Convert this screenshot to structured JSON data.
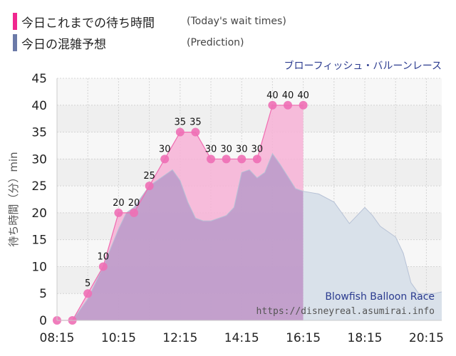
{
  "legend": [
    {
      "label": "今日これまでの待ち時間",
      "sub": "(Today's wait times)",
      "color": "#f0278f"
    },
    {
      "label": "今日の混雑予想",
      "sub": "(Prediction)",
      "color": "#6b7aa8"
    }
  ],
  "attraction_name": "ブローフィッシュ・バルーンレース",
  "watermark": {
    "title": "Blowfish Balloon Race",
    "url": "https://disneyreal.asumirai.info"
  },
  "chart_data": {
    "type": "area",
    "ylabel": "待ち時間（分）min",
    "ylim": [
      0,
      45
    ],
    "yticks": [
      0,
      5,
      10,
      15,
      20,
      25,
      30,
      35,
      40,
      45
    ],
    "xlim": [
      "08:15",
      "20:45"
    ],
    "xticks": [
      "08:15",
      "10:15",
      "12:15",
      "14:15",
      "16:15",
      "18:15",
      "20:15"
    ],
    "grid": true,
    "series": [
      {
        "name": "今日これまでの待ち時間",
        "color": "#f0278f",
        "x": [
          "08:15",
          "08:45",
          "09:15",
          "09:45",
          "10:15",
          "10:45",
          "11:15",
          "11:45",
          "12:15",
          "12:45",
          "13:15",
          "13:45",
          "14:15",
          "14:45",
          "15:15",
          "15:45",
          "16:15"
        ],
        "values": [
          0,
          0,
          5,
          10,
          20,
          20,
          25,
          30,
          35,
          35,
          30,
          30,
          30,
          30,
          40,
          40,
          40
        ]
      },
      {
        "name": "今日の混雑予想",
        "color": "#6b7aa8",
        "x": [
          "08:15",
          "08:45",
          "09:15",
          "09:45",
          "10:15",
          "10:30",
          "10:45",
          "11:15",
          "11:45",
          "12:00",
          "12:15",
          "12:30",
          "12:45",
          "13:00",
          "13:15",
          "13:45",
          "14:00",
          "14:15",
          "14:30",
          "14:45",
          "15:00",
          "15:15",
          "15:30",
          "16:00",
          "16:15",
          "16:45",
          "17:15",
          "17:45",
          "18:00",
          "18:15",
          "18:30",
          "18:45",
          "19:15",
          "19:30",
          "19:45",
          "20:00",
          "20:30",
          "20:45"
        ],
        "values": [
          0,
          0,
          4,
          10,
          17,
          20,
          21,
          25,
          27,
          28,
          26,
          22,
          19,
          18.5,
          18.5,
          19.5,
          21,
          27.5,
          28,
          26.5,
          27.5,
          31,
          29,
          24.5,
          24,
          23.5,
          22,
          18,
          19.5,
          21,
          19.5,
          17.5,
          15.5,
          12.5,
          7,
          5,
          5,
          5.3
        ]
      }
    ]
  }
}
